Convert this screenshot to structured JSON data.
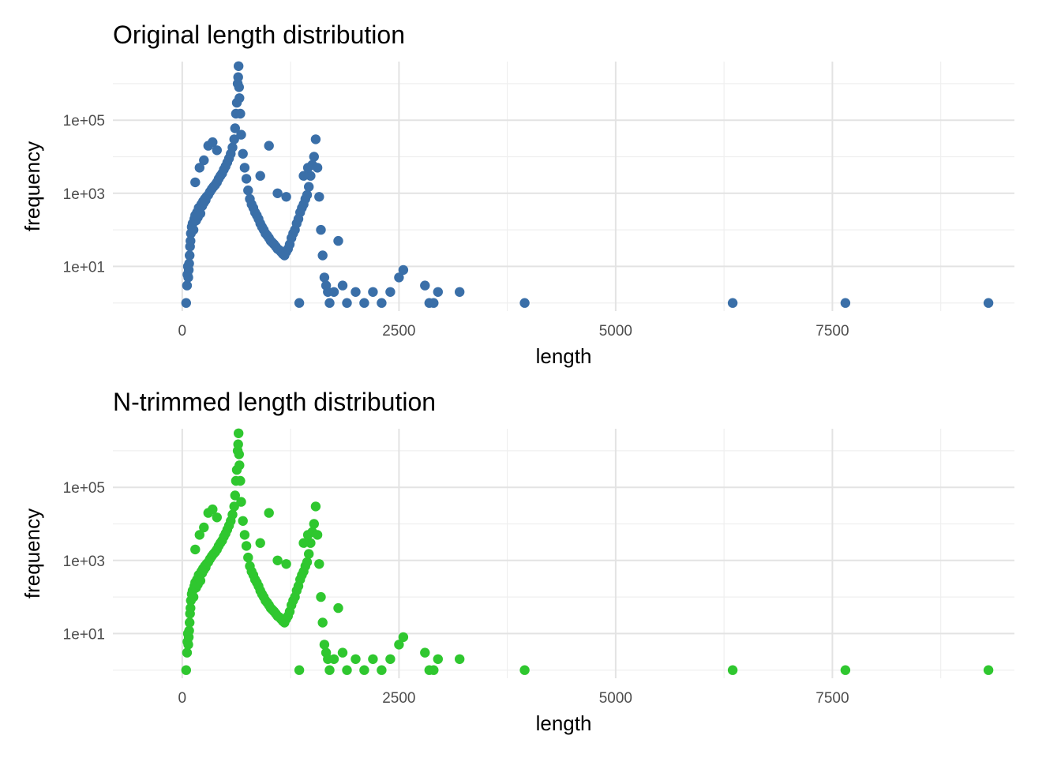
{
  "chart_data": [
    {
      "type": "scatter",
      "title": "Original length distribution",
      "xlabel": "length",
      "ylabel": "frequency",
      "y_scale": "log10",
      "xlim": [
        -800,
        9600
      ],
      "ylim": [
        0.6,
        4000000
      ],
      "x_ticks": [
        0,
        2500,
        5000,
        7500
      ],
      "x_tick_labels": [
        "0",
        "2500",
        "5000",
        "7500"
      ],
      "y_ticks": [
        10,
        1000,
        100000
      ],
      "y_tick_labels": [
        "1e+01",
        "1e+03",
        "1e+05"
      ],
      "grid": true,
      "legend": "none",
      "point_color": "#3a6fa8",
      "points": [
        [
          45,
          1
        ],
        [
          55,
          3
        ],
        [
          60,
          6
        ],
        [
          65,
          10
        ],
        [
          70,
          5
        ],
        [
          75,
          8
        ],
        [
          80,
          12
        ],
        [
          85,
          20
        ],
        [
          90,
          35
        ],
        [
          95,
          50
        ],
        [
          100,
          80
        ],
        [
          110,
          120
        ],
        [
          120,
          150
        ],
        [
          130,
          100
        ],
        [
          140,
          200
        ],
        [
          150,
          250
        ],
        [
          160,
          180
        ],
        [
          170,
          300
        ],
        [
          180,
          220
        ],
        [
          190,
          400
        ],
        [
          200,
          350
        ],
        [
          210,
          280
        ],
        [
          220,
          500
        ],
        [
          230,
          450
        ],
        [
          240,
          600
        ],
        [
          250,
          550
        ],
        [
          260,
          700
        ],
        [
          270,
          650
        ],
        [
          280,
          800
        ],
        [
          300,
          900
        ],
        [
          320,
          1100
        ],
        [
          340,
          1300
        ],
        [
          360,
          1500
        ],
        [
          380,
          1700
        ],
        [
          400,
          2000
        ],
        [
          420,
          2500
        ],
        [
          440,
          3000
        ],
        [
          460,
          3500
        ],
        [
          480,
          4500
        ],
        [
          500,
          5500
        ],
        [
          520,
          7000
        ],
        [
          540,
          9000
        ],
        [
          560,
          12000
        ],
        [
          580,
          18000
        ],
        [
          600,
          30000
        ],
        [
          610,
          60000
        ],
        [
          620,
          150000
        ],
        [
          630,
          300000
        ],
        [
          640,
          1000000
        ],
        [
          645,
          1500000
        ],
        [
          650,
          3000000
        ],
        [
          655,
          800000
        ],
        [
          660,
          400000
        ],
        [
          670,
          150000
        ],
        [
          680,
          40000
        ],
        [
          700,
          12000
        ],
        [
          720,
          5000
        ],
        [
          740,
          2500
        ],
        [
          760,
          1200
        ],
        [
          780,
          700
        ],
        [
          800,
          500
        ],
        [
          820,
          400
        ],
        [
          840,
          300
        ],
        [
          860,
          250
        ],
        [
          880,
          200
        ],
        [
          900,
          150
        ],
        [
          920,
          120
        ],
        [
          940,
          100
        ],
        [
          960,
          80
        ],
        [
          980,
          70
        ],
        [
          1000,
          60
        ],
        [
          1020,
          50
        ],
        [
          1040,
          45
        ],
        [
          1060,
          40
        ],
        [
          1080,
          35
        ],
        [
          1100,
          30
        ],
        [
          1120,
          28
        ],
        [
          1140,
          25
        ],
        [
          1160,
          22
        ],
        [
          1180,
          20
        ],
        [
          1200,
          25
        ],
        [
          1220,
          30
        ],
        [
          1240,
          40
        ],
        [
          1260,
          60
        ],
        [
          1280,
          80
        ],
        [
          1300,
          100
        ],
        [
          1320,
          150
        ],
        [
          1340,
          200
        ],
        [
          1360,
          300
        ],
        [
          1380,
          400
        ],
        [
          1400,
          500
        ],
        [
          1420,
          700
        ],
        [
          1440,
          900
        ],
        [
          1460,
          1500
        ],
        [
          1480,
          3000
        ],
        [
          1500,
          6000
        ],
        [
          1520,
          10000
        ],
        [
          1540,
          30000
        ],
        [
          1560,
          5000
        ],
        [
          1580,
          800
        ],
        [
          1600,
          100
        ],
        [
          1620,
          20
        ],
        [
          1640,
          5
        ],
        [
          1660,
          3
        ],
        [
          1680,
          2
        ],
        [
          1700,
          1
        ],
        [
          1750,
          2
        ],
        [
          1800,
          50
        ],
        [
          1850,
          3
        ],
        [
          1900,
          1
        ],
        [
          2000,
          2
        ],
        [
          2100,
          1
        ],
        [
          2200,
          2
        ],
        [
          2300,
          1
        ],
        [
          2400,
          2
        ],
        [
          2500,
          5
        ],
        [
          2550,
          8
        ],
        [
          2800,
          3
        ],
        [
          2850,
          1
        ],
        [
          2900,
          1
        ],
        [
          2950,
          2
        ],
        [
          3200,
          2
        ],
        [
          3950,
          1
        ],
        [
          6350,
          1
        ],
        [
          7650,
          1
        ],
        [
          9300,
          1
        ],
        [
          150,
          2000
        ],
        [
          200,
          5000
        ],
        [
          250,
          8000
        ],
        [
          300,
          20000
        ],
        [
          350,
          25000
        ],
        [
          400,
          15000
        ],
        [
          1000,
          20000
        ],
        [
          900,
          3000
        ],
        [
          1100,
          1000
        ],
        [
          1200,
          800
        ],
        [
          1350,
          1
        ],
        [
          1400,
          3000
        ],
        [
          1450,
          5000
        ]
      ]
    },
    {
      "type": "scatter",
      "title": "N-trimmed length distribution",
      "xlabel": "length",
      "ylabel": "frequency",
      "y_scale": "log10",
      "xlim": [
        -800,
        9600
      ],
      "ylim": [
        0.6,
        4000000
      ],
      "x_ticks": [
        0,
        2500,
        5000,
        7500
      ],
      "x_tick_labels": [
        "0",
        "2500",
        "5000",
        "7500"
      ],
      "y_ticks": [
        10,
        1000,
        100000
      ],
      "y_tick_labels": [
        "1e+01",
        "1e+03",
        "1e+05"
      ],
      "grid": true,
      "legend": "none",
      "point_color": "#2fc72f",
      "points": [
        [
          45,
          1
        ],
        [
          55,
          3
        ],
        [
          60,
          6
        ],
        [
          65,
          10
        ],
        [
          70,
          5
        ],
        [
          75,
          8
        ],
        [
          80,
          12
        ],
        [
          85,
          20
        ],
        [
          90,
          35
        ],
        [
          95,
          50
        ],
        [
          100,
          80
        ],
        [
          110,
          120
        ],
        [
          120,
          150
        ],
        [
          130,
          100
        ],
        [
          140,
          200
        ],
        [
          150,
          250
        ],
        [
          160,
          180
        ],
        [
          170,
          300
        ],
        [
          180,
          220
        ],
        [
          190,
          400
        ],
        [
          200,
          350
        ],
        [
          210,
          280
        ],
        [
          220,
          500
        ],
        [
          230,
          450
        ],
        [
          240,
          600
        ],
        [
          250,
          550
        ],
        [
          260,
          700
        ],
        [
          270,
          650
        ],
        [
          280,
          800
        ],
        [
          300,
          900
        ],
        [
          320,
          1100
        ],
        [
          340,
          1300
        ],
        [
          360,
          1500
        ],
        [
          380,
          1700
        ],
        [
          400,
          2000
        ],
        [
          420,
          2500
        ],
        [
          440,
          3000
        ],
        [
          460,
          3500
        ],
        [
          480,
          4500
        ],
        [
          500,
          5500
        ],
        [
          520,
          7000
        ],
        [
          540,
          9000
        ],
        [
          560,
          12000
        ],
        [
          580,
          18000
        ],
        [
          600,
          30000
        ],
        [
          610,
          60000
        ],
        [
          620,
          150000
        ],
        [
          630,
          300000
        ],
        [
          640,
          1000000
        ],
        [
          645,
          1500000
        ],
        [
          650,
          3000000
        ],
        [
          655,
          800000
        ],
        [
          660,
          400000
        ],
        [
          670,
          150000
        ],
        [
          680,
          40000
        ],
        [
          700,
          12000
        ],
        [
          720,
          5000
        ],
        [
          740,
          2500
        ],
        [
          760,
          1200
        ],
        [
          780,
          700
        ],
        [
          800,
          500
        ],
        [
          820,
          400
        ],
        [
          840,
          300
        ],
        [
          860,
          250
        ],
        [
          880,
          200
        ],
        [
          900,
          150
        ],
        [
          920,
          120
        ],
        [
          940,
          100
        ],
        [
          960,
          80
        ],
        [
          980,
          70
        ],
        [
          1000,
          60
        ],
        [
          1020,
          50
        ],
        [
          1040,
          45
        ],
        [
          1060,
          40
        ],
        [
          1080,
          35
        ],
        [
          1100,
          30
        ],
        [
          1120,
          28
        ],
        [
          1140,
          25
        ],
        [
          1160,
          22
        ],
        [
          1180,
          20
        ],
        [
          1200,
          25
        ],
        [
          1220,
          30
        ],
        [
          1240,
          40
        ],
        [
          1260,
          60
        ],
        [
          1280,
          80
        ],
        [
          1300,
          100
        ],
        [
          1320,
          150
        ],
        [
          1340,
          200
        ],
        [
          1360,
          300
        ],
        [
          1380,
          400
        ],
        [
          1400,
          500
        ],
        [
          1420,
          700
        ],
        [
          1440,
          900
        ],
        [
          1460,
          1500
        ],
        [
          1480,
          3000
        ],
        [
          1500,
          6000
        ],
        [
          1520,
          10000
        ],
        [
          1540,
          30000
        ],
        [
          1560,
          5000
        ],
        [
          1580,
          800
        ],
        [
          1600,
          100
        ],
        [
          1620,
          20
        ],
        [
          1640,
          5
        ],
        [
          1660,
          3
        ],
        [
          1680,
          2
        ],
        [
          1700,
          1
        ],
        [
          1750,
          2
        ],
        [
          1800,
          50
        ],
        [
          1850,
          3
        ],
        [
          1900,
          1
        ],
        [
          2000,
          2
        ],
        [
          2100,
          1
        ],
        [
          2200,
          2
        ],
        [
          2300,
          1
        ],
        [
          2400,
          2
        ],
        [
          2500,
          5
        ],
        [
          2550,
          8
        ],
        [
          2800,
          3
        ],
        [
          2850,
          1
        ],
        [
          2900,
          1
        ],
        [
          2950,
          2
        ],
        [
          3200,
          2
        ],
        [
          3950,
          1
        ],
        [
          6350,
          1
        ],
        [
          7650,
          1
        ],
        [
          9300,
          1
        ],
        [
          150,
          2000
        ],
        [
          200,
          5000
        ],
        [
          250,
          8000
        ],
        [
          300,
          20000
        ],
        [
          350,
          25000
        ],
        [
          400,
          15000
        ],
        [
          1000,
          20000
        ],
        [
          900,
          3000
        ],
        [
          1100,
          1000
        ],
        [
          1200,
          800
        ],
        [
          1350,
          1
        ],
        [
          1400,
          3000
        ],
        [
          1450,
          5000
        ]
      ]
    }
  ]
}
